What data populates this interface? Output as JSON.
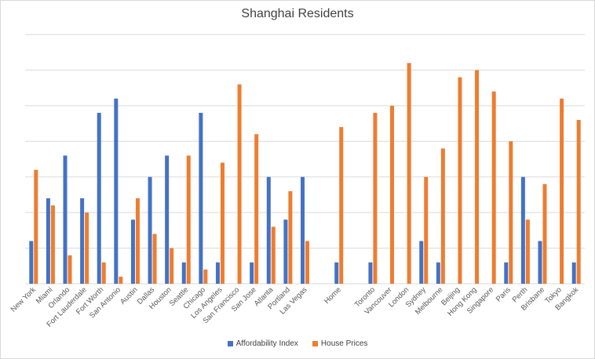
{
  "chart_data": {
    "type": "bar",
    "title": "Shanghai Residents",
    "xlabel": "",
    "ylabel": "",
    "ylim": [
      0,
      35
    ],
    "grid": true,
    "legend_position": "bottom",
    "categories": [
      "New York",
      "Miami",
      "Orlando",
      "Fort Lauderdale",
      "Fort Worth",
      "San Antonio",
      "Austin",
      "Dallas",
      "Houston",
      "Seattle",
      "Chicago",
      "Los Angeles",
      "San Francisco",
      "San Jose",
      "Atlanta",
      "Portland",
      "Las Vegas",
      "",
      "Home",
      "",
      "Toronto",
      "Vancouver",
      "London",
      "Sydney",
      "Melbourne",
      "Beijing",
      "Hong Kong",
      "Singapore",
      "Paris",
      "Perth",
      "Brisbane",
      "Tokyo",
      "Bangkok"
    ],
    "series": [
      {
        "name": "Affordability Index",
        "color": "#4472C4",
        "values": [
          6,
          12,
          18,
          12,
          24,
          26,
          9,
          15,
          18,
          3,
          24,
          3,
          0,
          3,
          15,
          9,
          15,
          0,
          3,
          0,
          3,
          0,
          0,
          6,
          3,
          0,
          0,
          0,
          3,
          15,
          6,
          0,
          3
        ]
      },
      {
        "name": "House Prices",
        "color": "#ED7D31",
        "values": [
          16,
          11,
          4,
          10,
          3,
          1,
          12,
          7,
          5,
          18,
          2,
          17,
          28,
          21,
          8,
          13,
          6,
          0,
          22,
          0,
          24,
          25,
          31,
          15,
          19,
          29,
          30,
          27,
          20,
          9,
          14,
          26,
          23
        ]
      }
    ]
  }
}
